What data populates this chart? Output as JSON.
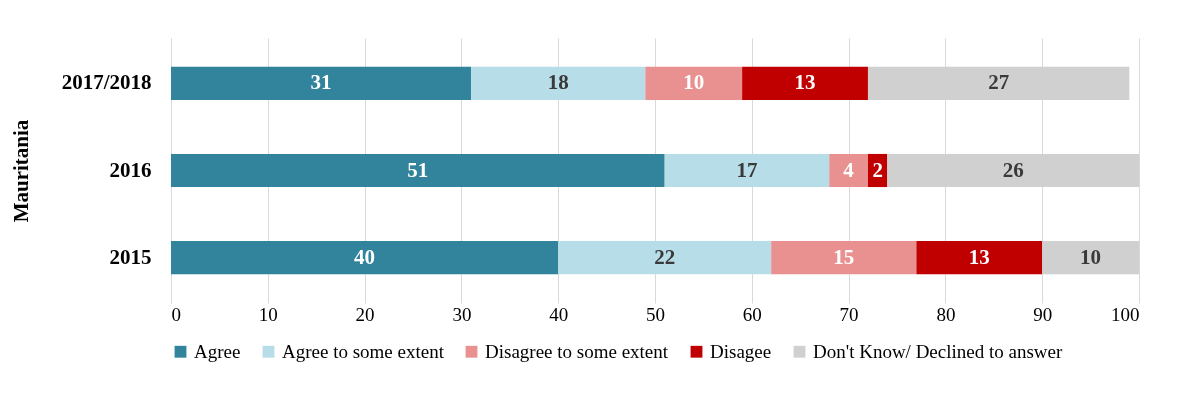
{
  "chart_data": {
    "type": "bar",
    "orientation": "horizontal",
    "stacked": true,
    "ylabel": "Mauritania",
    "categories": [
      "2017/2018",
      "2016",
      "2015"
    ],
    "series": [
      {
        "name": "Agree",
        "color": "#31849b",
        "values": [
          31,
          51,
          40
        ]
      },
      {
        "name": "Agree to some extent",
        "color": "#b7dee8",
        "values": [
          18,
          17,
          22
        ]
      },
      {
        "name": "Disagree to some extent",
        "color": "#e99191",
        "values": [
          10,
          4,
          15
        ]
      },
      {
        "name": "Disagee",
        "color": "#c00000",
        "values": [
          13,
          2,
          13
        ]
      },
      {
        "name": "Don't Know/ Declined to answer",
        "color": "#d0d0d0",
        "values": [
          27,
          26,
          10
        ]
      }
    ],
    "xlim": [
      0,
      100
    ],
    "xticks": [
      0,
      10,
      20,
      30,
      40,
      50,
      60,
      70,
      80,
      90,
      100
    ],
    "grid": "x",
    "legend": "bottom",
    "data_labels": true
  }
}
